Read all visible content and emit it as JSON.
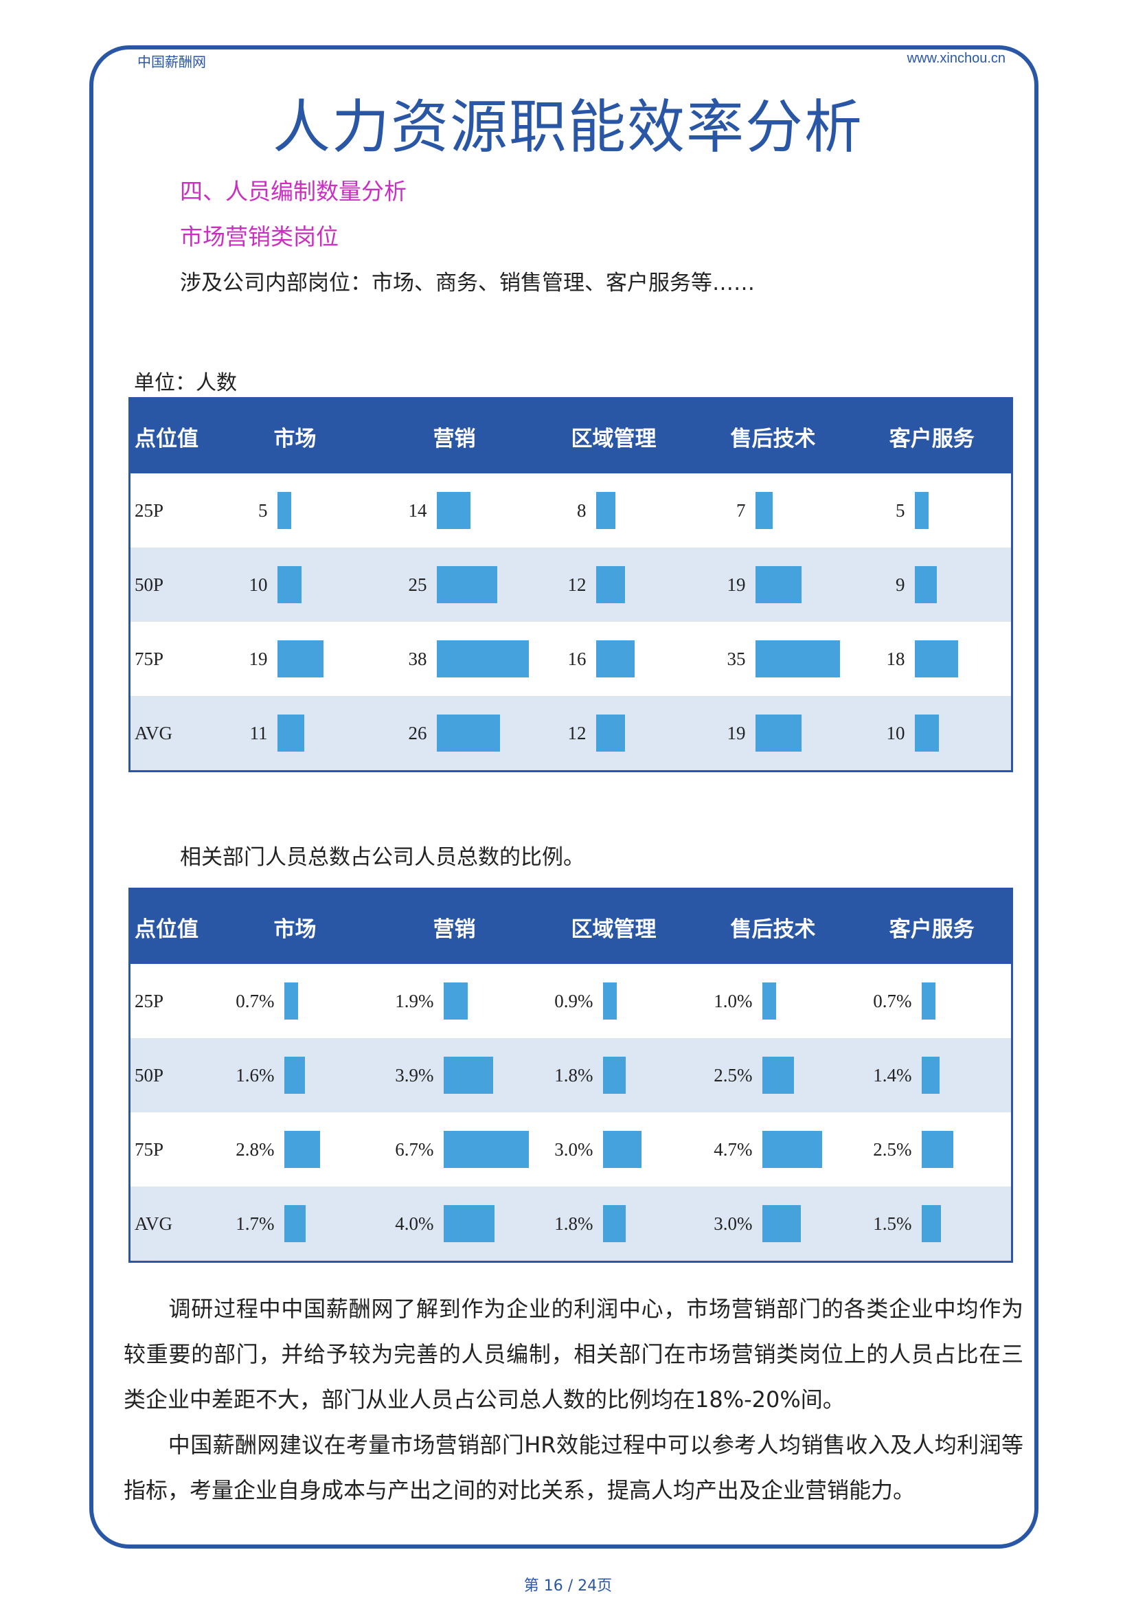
{
  "header": {
    "left": "中国薪酬网",
    "right": "www.xinchou.cn"
  },
  "title": "人力资源职能效率分析",
  "section_heading": "四、人员编制数量分析",
  "subsection_heading": "市场营销类岗位",
  "intro_line": "涉及公司内部岗位：市场、商务、销售管理、客户服务等……",
  "unit_label": "单位：人数",
  "table1": {
    "columns": [
      "点位值",
      "市场",
      "营销",
      "区域管理",
      "售后技术",
      "客户服务"
    ],
    "rows": [
      {
        "label": "25P",
        "values": [
          "5",
          "14",
          "8",
          "7",
          "5"
        ],
        "nums": [
          5,
          14,
          8,
          7,
          5
        ]
      },
      {
        "label": "50P",
        "values": [
          "10",
          "25",
          "12",
          "19",
          "9"
        ],
        "nums": [
          10,
          25,
          12,
          19,
          9
        ]
      },
      {
        "label": "75P",
        "values": [
          "19",
          "38",
          "16",
          "35",
          "18"
        ],
        "nums": [
          19,
          38,
          16,
          35,
          18
        ]
      },
      {
        "label": "AVG",
        "values": [
          "11",
          "26",
          "12",
          "19",
          "10"
        ],
        "nums": [
          11,
          26,
          12,
          19,
          10
        ]
      }
    ]
  },
  "ratio_caption": "相关部门人员总数占公司人员总数的比例。",
  "table2": {
    "columns": [
      "点位值",
      "市场",
      "营销",
      "区域管理",
      "售后技术",
      "客户服务"
    ],
    "rows": [
      {
        "label": "25P",
        "values": [
          "0.7%",
          "1.9%",
          "0.9%",
          "1.0%",
          "0.7%"
        ],
        "nums": [
          0.7,
          1.9,
          0.9,
          1.0,
          0.7
        ]
      },
      {
        "label": "50P",
        "values": [
          "1.6%",
          "3.9%",
          "1.8%",
          "2.5%",
          "1.4%"
        ],
        "nums": [
          1.6,
          3.9,
          1.8,
          2.5,
          1.4
        ]
      },
      {
        "label": "75P",
        "values": [
          "2.8%",
          "6.7%",
          "3.0%",
          "4.7%",
          "2.5%"
        ],
        "nums": [
          2.8,
          6.7,
          3.0,
          4.7,
          2.5
        ]
      },
      {
        "label": "AVG",
        "values": [
          "1.7%",
          "4.0%",
          "1.8%",
          "3.0%",
          "1.5%"
        ],
        "nums": [
          1.7,
          4.0,
          1.8,
          3.0,
          1.5
        ]
      }
    ]
  },
  "paragraph1": "　　调研过程中中国薪酬网了解到作为企业的利润中心，市场营销部门的各类企业中均作为较重要的部门，并给予较为完善的人员编制，相关部门在市场营销类岗位上的人员占比在三类企业中差距不大，部门从业人员占公司总人数的比例均在18%-20%间。",
  "paragraph2": "　　中国薪酬网建议在考量市场营销部门HR效能过程中可以参考人均销售收入及人均利润等指标，考量企业自身成本与产出之间的对比关系，提高人均产出及企业营销能力。",
  "footer": "第 16 / 24页",
  "colors": {
    "brand": "#2a56a6",
    "heading": "#c930c0",
    "bar": "#46a2dc",
    "row_alt": "#dde7f4"
  }
}
